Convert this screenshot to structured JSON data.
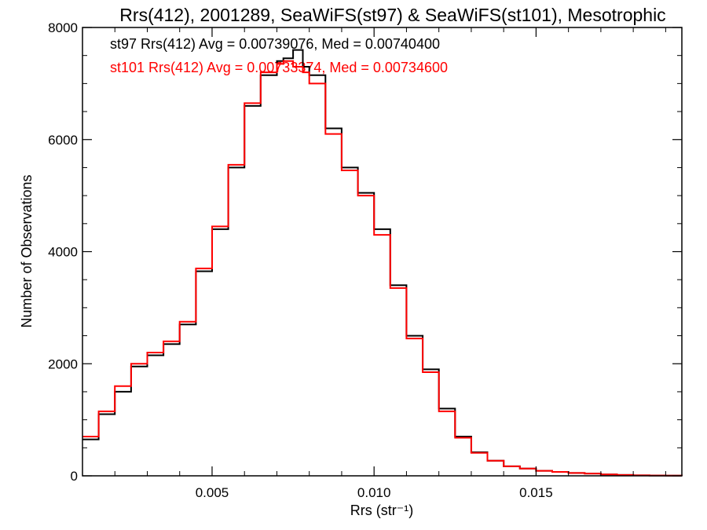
{
  "chart_data": {
    "type": "line",
    "title": "Rrs(412), 2001289, SeaWiFS(st97) & SeaWiFS(st101), Mesotrophic",
    "xlabel": "Rrs (str⁻¹)",
    "ylabel": "Number of Observations",
    "xlim": [
      0.001,
      0.0195
    ],
    "ylim": [
      0,
      8000
    ],
    "x_ticks": [
      0.005,
      0.01,
      0.015
    ],
    "x_tick_labels": [
      "0.005",
      "0.010",
      "0.015"
    ],
    "y_ticks": [
      0,
      2000,
      4000,
      6000,
      8000
    ],
    "y_tick_labels": [
      "0",
      "2000",
      "4000",
      "6000",
      "8000"
    ],
    "grid": false,
    "annotations": [
      {
        "text": "st97 Rrs(412) Avg = 0.00739076, Med = 0.00740400",
        "color": "#000000"
      },
      {
        "text": "st101 Rrs(412) Avg = 0.00733374, Med = 0.00734600",
        "color": "#ff0000"
      }
    ],
    "series": [
      {
        "color": "#000000",
        "step": true,
        "x": [
          0.001,
          0.0015,
          0.002,
          0.0025,
          0.003,
          0.0035,
          0.004,
          0.0045,
          0.005,
          0.0055,
          0.006,
          0.0065,
          0.007,
          0.0072,
          0.0075,
          0.0078,
          0.008,
          0.0085,
          0.009,
          0.0095,
          0.01,
          0.0105,
          0.011,
          0.0115,
          0.012,
          0.0125,
          0.013,
          0.0135,
          0.014,
          0.0145,
          0.015,
          0.0155,
          0.016,
          0.0165,
          0.017,
          0.0175,
          0.018,
          0.0185,
          0.019,
          0.0195
        ],
        "y": [
          650,
          1100,
          1500,
          1950,
          2150,
          2350,
          2700,
          3650,
          4400,
          5500,
          6600,
          7150,
          7400,
          7450,
          7600,
          7300,
          7150,
          6200,
          5500,
          5050,
          4400,
          3400,
          2500,
          1900,
          1200,
          700,
          420,
          270,
          170,
          130,
          90,
          70,
          50,
          40,
          25,
          15,
          8,
          5,
          3,
          2
        ]
      },
      {
        "color": "#ff0000",
        "step": true,
        "x": [
          0.001,
          0.0015,
          0.002,
          0.0025,
          0.003,
          0.0035,
          0.004,
          0.0045,
          0.005,
          0.0055,
          0.006,
          0.0065,
          0.007,
          0.0072,
          0.0075,
          0.0078,
          0.008,
          0.0085,
          0.009,
          0.0095,
          0.01,
          0.0105,
          0.011,
          0.0115,
          0.012,
          0.0125,
          0.013,
          0.0135,
          0.014,
          0.0145,
          0.015,
          0.0155,
          0.016,
          0.0165,
          0.017,
          0.0175,
          0.018,
          0.0185,
          0.019,
          0.0195
        ],
        "y": [
          700,
          1150,
          1600,
          2000,
          2200,
          2400,
          2750,
          3700,
          4450,
          5550,
          6650,
          7200,
          7350,
          7400,
          7300,
          7200,
          7000,
          6100,
          5450,
          5000,
          4300,
          3350,
          2450,
          1850,
          1150,
          680,
          410,
          270,
          170,
          130,
          90,
          70,
          50,
          40,
          25,
          15,
          8,
          5,
          3,
          2
        ]
      }
    ]
  }
}
